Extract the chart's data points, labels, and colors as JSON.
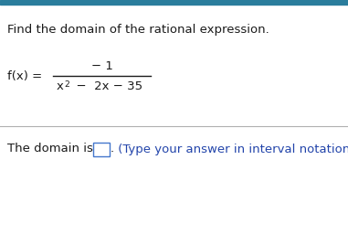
{
  "title_text": "Find the domain of the rational expression.",
  "numerator": "− 1",
  "denominator_parts": [
    "x",
    "2",
    "  −  2x − 35"
  ],
  "fx_label": "f(x) = ",
  "domain_prefix": "The domain is",
  "domain_hint": " (Type your answer in interval notation.)",
  "domain_hint_color": "#2244aa",
  "bg_color": "#ffffff",
  "top_bar_color": "#2a7d9c",
  "separator_color": "#b0b0b0",
  "text_color": "#1a1a1a",
  "title_fontsize": 9.5,
  "body_fontsize": 9.5,
  "hint_fontsize": 9.5,
  "box_edge_color": "#4477cc"
}
